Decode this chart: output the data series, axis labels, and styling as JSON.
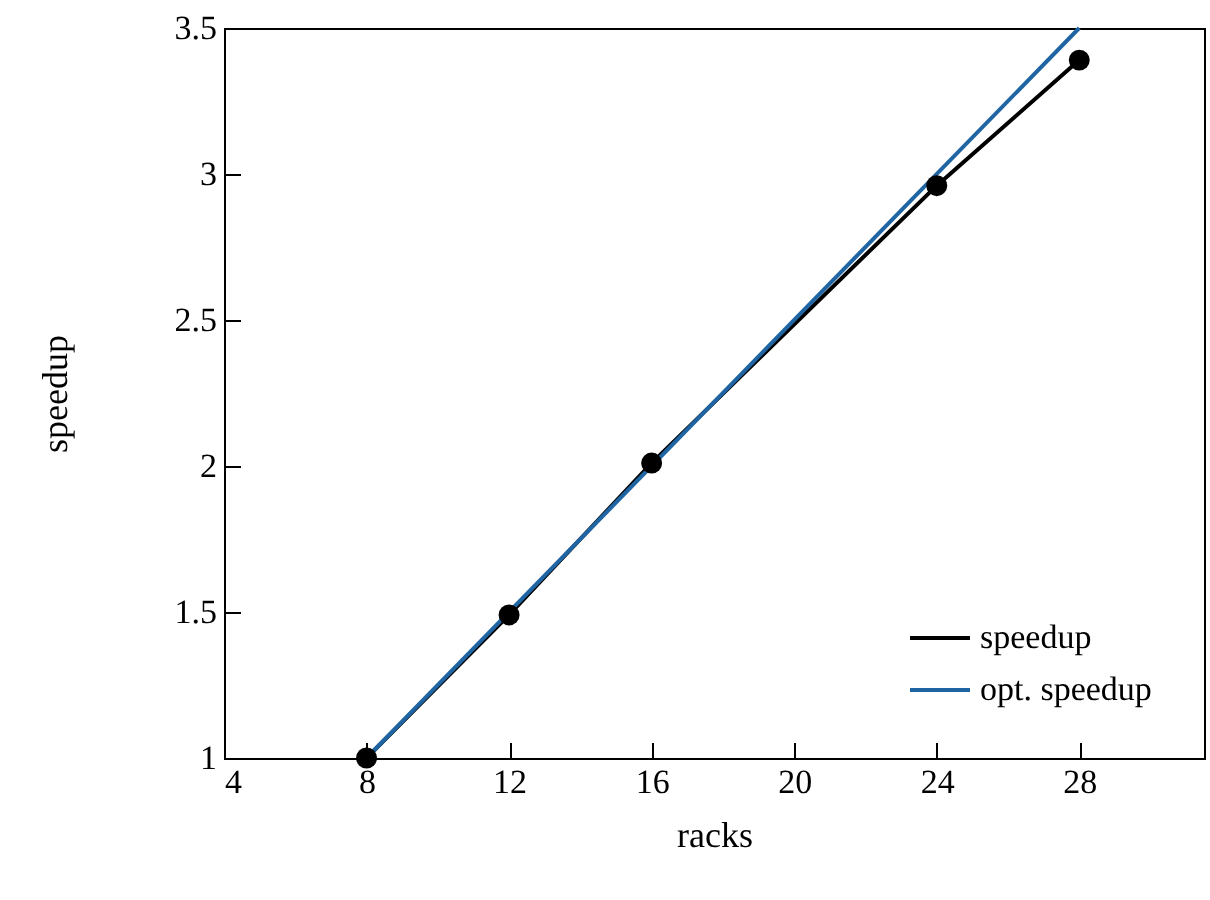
{
  "chart_data": {
    "type": "line",
    "xlabel": "racks",
    "ylabel": "speedup",
    "x": [
      8,
      12,
      16,
      24,
      28
    ],
    "series": [
      {
        "name": "speedup",
        "color": "#000000",
        "marker": "circle",
        "values": [
          1,
          1.49,
          2.01,
          2.96,
          3.39
        ]
      },
      {
        "name": "opt. speedup",
        "color": "#1f65a3",
        "marker": "none",
        "x": [
          8,
          28
        ],
        "values": [
          1,
          3.5
        ]
      }
    ],
    "xlim": [
      4,
      31.5
    ],
    "xticks": [
      4,
      8,
      12,
      16,
      20,
      24,
      28
    ],
    "ylim": [
      1,
      3.5
    ],
    "yticks": [
      1,
      1.5,
      2,
      2.5,
      3,
      3.5
    ],
    "grid": false,
    "legend": "bottom right"
  }
}
